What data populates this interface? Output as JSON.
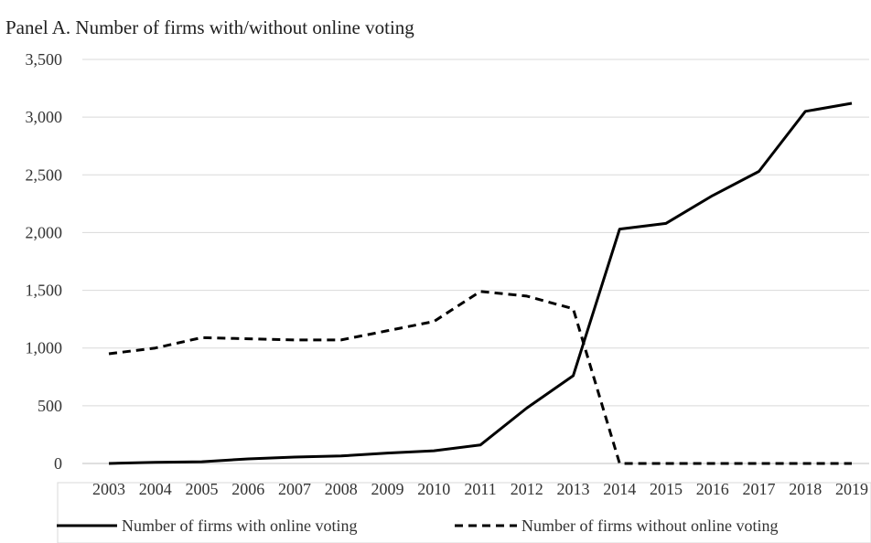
{
  "chart_data": {
    "type": "line",
    "title": "Panel A. Number of firms with/without online voting",
    "xlabel": "",
    "ylabel": "",
    "categories": [
      "2003",
      "2004",
      "2005",
      "2006",
      "2007",
      "2008",
      "2009",
      "2010",
      "2011",
      "2012",
      "2013",
      "2014",
      "2015",
      "2016",
      "2017",
      "2018",
      "2019"
    ],
    "ylim": [
      0,
      3500
    ],
    "yticks": [
      0,
      500,
      1000,
      1500,
      2000,
      2500,
      3000,
      3500
    ],
    "ytick_labels": [
      "0",
      "500",
      "1,000",
      "1,500",
      "2,000",
      "2,500",
      "3,000",
      "3,500"
    ],
    "grid": true,
    "legend_position": "bottom",
    "series": [
      {
        "name": "Number of firms with online voting",
        "style": "solid",
        "color": "#000000",
        "values": [
          0,
          10,
          15,
          40,
          55,
          65,
          90,
          110,
          160,
          480,
          760,
          2030,
          2080,
          2320,
          2530,
          3050,
          3120
        ]
      },
      {
        "name": "Number of firms without online voting",
        "style": "dashed",
        "color": "#000000",
        "values": [
          950,
          1000,
          1090,
          1080,
          1070,
          1070,
          1150,
          1230,
          1490,
          1450,
          1340,
          0,
          0,
          0,
          0,
          0,
          0
        ]
      }
    ]
  }
}
